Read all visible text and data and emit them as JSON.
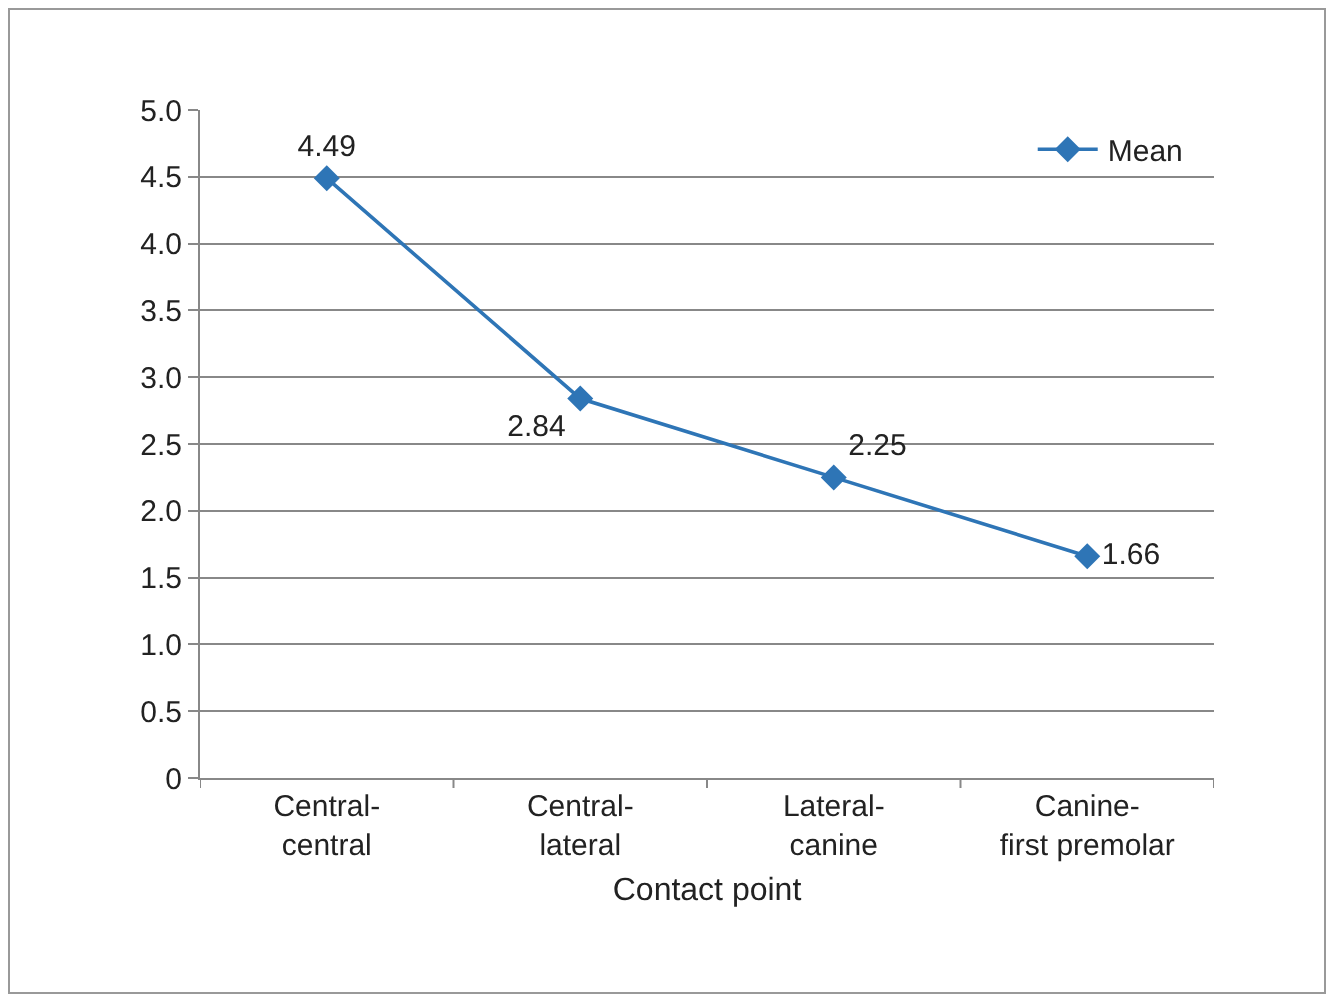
{
  "chart_data": {
    "type": "line",
    "xlabel": "Contact point",
    "categories": [
      "Central-\ncentral",
      "Central-\nlateral",
      "Lateral-\ncanine",
      "Canine-\nfirst premolar"
    ],
    "series": [
      {
        "name": "Mean",
        "color": "#2e75b6",
        "values": [
          4.49,
          2.84,
          2.25,
          1.66
        ]
      }
    ],
    "ylim": [
      0,
      5
    ],
    "yticks": [
      {
        "value": 0,
        "label": "0"
      },
      {
        "value": 0.5,
        "label": "0.5"
      },
      {
        "value": 1,
        "label": "1.0"
      },
      {
        "value": 1.5,
        "label": "1.5"
      },
      {
        "value": 2,
        "label": "2.0"
      },
      {
        "value": 2.5,
        "label": "2.5"
      },
      {
        "value": 3,
        "label": "3.0"
      },
      {
        "value": 3.5,
        "label": "3.5"
      },
      {
        "value": 4,
        "label": "4.0"
      },
      {
        "value": 4.5,
        "label": "4.5"
      },
      {
        "value": 5,
        "label": "5.0"
      }
    ],
    "grid": "y",
    "legend": "top right",
    "marker": "diamond",
    "line_style": "solid",
    "data_labels": true
  }
}
